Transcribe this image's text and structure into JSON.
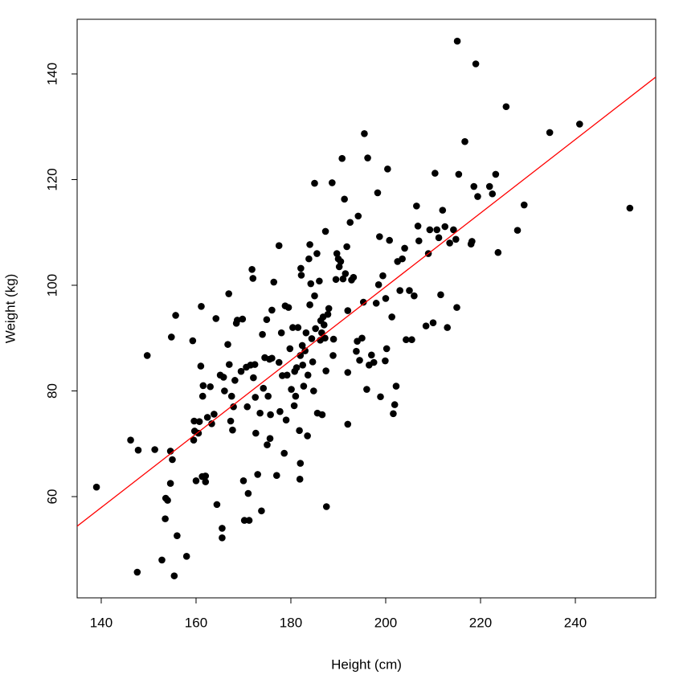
{
  "chart_data": {
    "type": "scatter",
    "xlabel": "Height (cm)",
    "ylabel": "Weight (kg)",
    "xlim": [
      134.92,
      256.95
    ],
    "ylim": [
      40.84,
      150.34
    ],
    "xticks": [
      140,
      160,
      180,
      200,
      220,
      240
    ],
    "yticks": [
      60,
      80,
      100,
      120,
      140
    ],
    "color": "#000000",
    "fit_line": {
      "x": [
        134.92,
        256.95
      ],
      "y": [
        54.4,
        139.4
      ],
      "color": "#ff0000"
    },
    "x": [
      139,
      146.2,
      147.6,
      147.8,
      149.7,
      151.3,
      152.8,
      153.5,
      153.6,
      154,
      154.6,
      154.6,
      154.8,
      155,
      155.4,
      155.7,
      156,
      158,
      159.3,
      159.5,
      159.6,
      159.7,
      160,
      160.5,
      160.7,
      161,
      161.1,
      161.3,
      161.4,
      161.5,
      162,
      162,
      162.4,
      163,
      163.3,
      163.8,
      164.2,
      164.4,
      165.1,
      165.5,
      165.5,
      165.8,
      166,
      166.7,
      166.9,
      167,
      167.3,
      167.5,
      167.7,
      167.9,
      168.2,
      168.5,
      168.7,
      169.5,
      169.8,
      170,
      170.2,
      170.6,
      170.8,
      171,
      171.2,
      171.5,
      171.8,
      172,
      172.1,
      172.4,
      172.6,
      172.5,
      173,
      173.5,
      173.8,
      174,
      174.2,
      174.5,
      174.9,
      175,
      175.2,
      175.5,
      175.6,
      175.7,
      176,
      176,
      176.4,
      177,
      177.5,
      177.5,
      177.7,
      178,
      178.2,
      178.6,
      178.8,
      179,
      179.2,
      179.5,
      179.8,
      180.1,
      180.4,
      180.7,
      180.8,
      181,
      181.2,
      181.5,
      181.8,
      181.9,
      182,
      182,
      182.1,
      182.2,
      182.4,
      182.5,
      182.7,
      183,
      183.2,
      183.5,
      183.6,
      183.8,
      184,
      184,
      184.2,
      184.4,
      184.6,
      184.8,
      185,
      185,
      185.2,
      185.5,
      185.6,
      186,
      186.2,
      186.3,
      186.5,
      186.6,
      186.8,
      187,
      187.2,
      187.3,
      187.4,
      187.5,
      187.8,
      188,
      188.7,
      188.9,
      189,
      189.5,
      189.7,
      190,
      190.2,
      190.5,
      190.8,
      191,
      191.3,
      191.5,
      191.8,
      192,
      192,
      192,
      192.5,
      192.8,
      193.2,
      193.8,
      194,
      194.2,
      194.5,
      195,
      195.3,
      195.5,
      196,
      196.2,
      196.5,
      197,
      197.5,
      198,
      198.3,
      198.5,
      198.7,
      198.9,
      199.4,
      199.9,
      200,
      200.2,
      200.4,
      200.8,
      201.3,
      201.6,
      201.9,
      202.2,
      202.5,
      203,
      203.5,
      204,
      204.3,
      205,
      205.5,
      206,
      206.5,
      206.8,
      207,
      208.5,
      209,
      209.3,
      210,
      210.4,
      210.8,
      211.2,
      211.6,
      212,
      212.5,
      213,
      213.5,
      214.3,
      214.8,
      215,
      215.4,
      215.1,
      216.7,
      218,
      218.2,
      218.6,
      219,
      219.4,
      221.9,
      222.5,
      223.2,
      223.7,
      225.4,
      227.8,
      229.2,
      234.6,
      240.9,
      251.5
    ],
    "values": [
      61.8,
      70.7,
      45.7,
      68.8,
      86.7,
      68.9,
      48,
      55.8,
      59.7,
      59.3,
      62.5,
      68.6,
      90.2,
      67,
      45,
      94.3,
      52.6,
      48.7,
      89.5,
      70.7,
      74.3,
      72.4,
      63,
      72,
      74.2,
      84.7,
      96,
      63.8,
      79,
      81,
      62.8,
      63.9,
      75,
      80.8,
      73.8,
      75.6,
      93.7,
      58.5,
      83,
      54,
      52.2,
      82.6,
      80,
      88.8,
      98.4,
      85,
      74.3,
      79,
      72.6,
      77,
      82,
      92.8,
      93.4,
      83.7,
      93.6,
      63,
      55.5,
      84.5,
      77,
      60.6,
      55.5,
      84.9,
      103,
      101.3,
      82.5,
      85,
      72,
      78.8,
      64.2,
      75.8,
      57.3,
      90.7,
      80.5,
      86.3,
      93.5,
      69.8,
      79,
      86,
      71,
      75.5,
      95.3,
      86.2,
      100.6,
      64,
      85.4,
      107.5,
      76.1,
      91,
      82.9,
      68.2,
      96.1,
      74.5,
      83,
      95.8,
      88,
      80.3,
      92,
      77.2,
      83.7,
      79,
      84.4,
      92,
      72.5,
      63.3,
      66.3,
      86.7,
      103.2,
      101.9,
      88.6,
      84.9,
      80.9,
      87.6,
      91,
      71.5,
      83,
      105,
      96.3,
      107.7,
      100.3,
      89.9,
      85.5,
      80,
      98,
      119.3,
      91.8,
      106,
      75.8,
      100.8,
      89.6,
      93.3,
      91,
      75.5,
      94,
      92.5,
      90,
      110.2,
      83.8,
      58.1,
      94.5,
      95.6,
      119.4,
      86.7,
      89.8,
      101.1,
      106,
      105,
      103.5,
      104.5,
      124,
      101.2,
      116.3,
      102.2,
      107.3,
      95.2,
      83.5,
      73.7,
      111.9,
      101,
      101.5,
      87.5,
      89.4,
      113.1,
      85.8,
      90,
      96.8,
      128.7,
      80.3,
      124.1,
      84.9,
      86.8,
      85.4,
      96.6,
      117.5,
      100.1,
      109.2,
      78.9,
      101.8,
      85.7,
      97.5,
      88,
      122,
      108.5,
      94,
      75.7,
      77.4,
      80.9,
      104.5,
      99,
      105,
      107,
      89.7,
      99,
      89.7,
      98,
      115,
      111.2,
      108.4,
      92.3,
      106,
      110.5,
      92.9,
      121.2,
      110.5,
      109,
      98.2,
      114.2,
      111.1,
      92,
      108,
      110.5,
      108.7,
      95.8,
      121,
      146.2,
      127.2,
      107.8,
      108.3,
      118.7,
      141.9,
      116.8,
      118.7,
      117.3,
      121,
      106.2,
      133.8,
      110.4,
      115.2,
      128.9,
      130.5,
      114.6
    ]
  }
}
